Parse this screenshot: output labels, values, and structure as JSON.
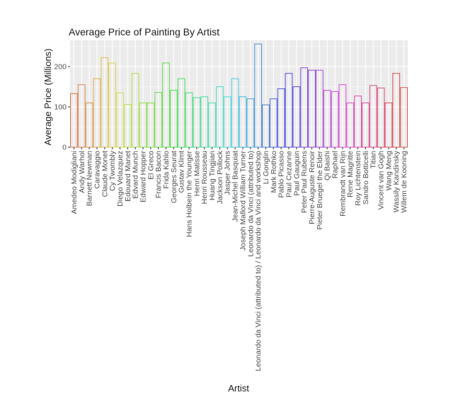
{
  "chart_data": {
    "type": "bar",
    "title": "Average Price of Painting By Artist",
    "xlabel": "Artist",
    "ylabel": "Average Price (Millions)",
    "ylim": [
      0,
      265
    ],
    "yticks": [
      0,
      100,
      200
    ],
    "grid": true,
    "legend": "none",
    "bar_style": "outline",
    "panel_background": "#ebebeb",
    "gridline_color": "#ffffff",
    "categories": [
      "Amedeo Modigliani",
      "Andy Warhol",
      "Barnett Newman",
      "Caravaggio",
      "Claude Monet",
      "Cy Twombly",
      "Diego Velazquez",
      "Edouard Manet",
      "Edvard Munch",
      "Edward Hopper",
      "El Greco",
      "Francis Bacon",
      "Frida Kahlo",
      "Georges Seurat",
      "Gustav Klimt",
      "Hans Holbein the Younger",
      "Henri Matisse",
      "Henri Rousseau",
      "Huang Tingjian",
      "Jackson Pollock",
      "Jasper Johns",
      "Jean-Michel Basquiat",
      "Joseph Mallord William Turner",
      "Leonardo da Vinci (attributed to)",
      "Leonardo da Vinci (attributed to) / Leonardo da Vinci and workshop",
      "Li Gonglin",
      "Mark Rothko",
      "Pablo Picasso",
      "Paul Cezanne",
      "Paul Gauguin",
      "Peter Paul Rubens",
      "Pierre-Auguste Renoir",
      "Pieter Bruegel the Elder",
      "Qi Baishi",
      "Raphael",
      "Rembrandt van Rijn",
      "Rene Magritte",
      "Roy Lichtenstein",
      "Sandro Botticelli",
      "Titian",
      "Vincent van Gogh",
      "Wang Meng",
      "Wassily Kandinsky",
      "Willem de Kooning"
    ],
    "values": [
      133,
      155,
      110,
      170,
      222,
      209,
      135,
      106,
      183,
      110,
      110,
      136,
      209,
      141,
      170,
      135,
      123,
      125,
      110,
      150,
      125,
      170,
      125,
      120,
      256,
      105,
      120,
      145,
      183,
      150,
      197,
      191,
      191,
      141,
      138,
      155,
      110,
      127,
      110,
      153,
      147,
      110,
      183,
      148
    ]
  }
}
